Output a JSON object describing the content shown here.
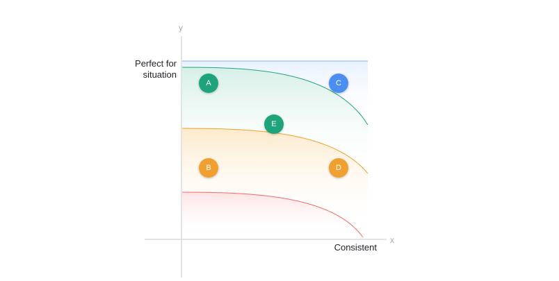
{
  "axes": {
    "y_letter": "y",
    "x_letter": "x",
    "y_label": "Perfect for situation",
    "x_label": "Consistent"
  },
  "colors": {
    "green": "#1fa37a",
    "orange": "#f0a030",
    "red": "#ef6b6b",
    "blue": "#4a8ef0",
    "axis": "#d7dade"
  },
  "points": [
    {
      "id": "A",
      "color": "green"
    },
    {
      "id": "B",
      "color": "orange"
    },
    {
      "id": "C",
      "color": "blue"
    },
    {
      "id": "D",
      "color": "orange"
    },
    {
      "id": "E",
      "color": "green"
    }
  ]
}
